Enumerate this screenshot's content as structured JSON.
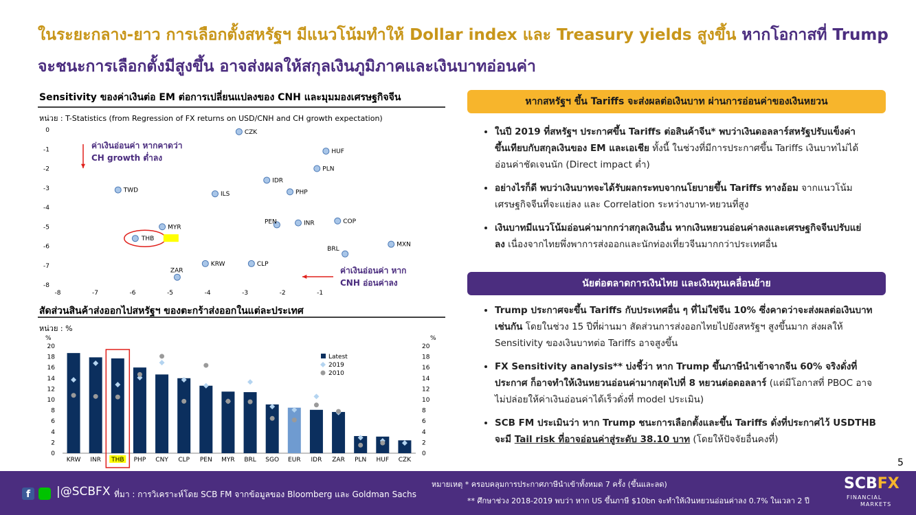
{
  "header": {
    "title_part1": "ในระยะกลาง-ยาว การเลือกตั้งสหรัฐฯ มีแนวโน้มทำให้ Dollar index และ Treasury yields สูงขึ้น",
    "title_part2": "หากโอกาสที่ Trump จะชนะการเลือกตั้งมีสูงขึ้น อาจส่งผลให้สกุลเงินภูมิภาคและเงินบาทอ่อนค่า"
  },
  "chart_data": [
    {
      "type": "scatter",
      "title": "Sensitivity ของค่าเงินต่อ EM ต่อการเปลี่ยนแปลงของ CNH และมุมมองเศรษฐกิจจีน",
      "subtitle": "หน่วย : T-Statistics (from Regression of FX returns on USD/CNH and CH growth expectation)",
      "labels": [
        "CZK",
        "HUF",
        "PLN",
        "IDR",
        "TWD",
        "ILS",
        "PHP",
        "MYR",
        "PEN",
        "INR",
        "COP",
        "THB",
        "BRL",
        "MXN",
        "KRW",
        "CLP",
        "ZAR"
      ],
      "x": [
        -3.16,
        -0.84,
        -1.08,
        -2.42,
        -6.39,
        -3.8,
        -1.8,
        -5.21,
        -2.15,
        -1.58,
        -0.53,
        -5.93,
        -0.33,
        0.9,
        -4.06,
        -2.83,
        -4.81
      ],
      "y": [
        -0.1,
        -1.1,
        -2.0,
        -2.6,
        -3.1,
        -3.3,
        -3.2,
        -5.0,
        -4.9,
        -4.8,
        -4.7,
        -5.6,
        -6.4,
        -5.9,
        -6.9,
        -6.9,
        -7.6
      ],
      "color": "#a9c6e8",
      "highlight_color": "#ffff00",
      "xlim": [
        -8,
        2.4
      ],
      "xticks": [
        -8,
        -7,
        -6,
        -5,
        -4,
        -3,
        -2,
        -1
      ],
      "ylim": [
        -8,
        0
      ],
      "yticks": [
        0,
        -1,
        -2,
        -3,
        -4,
        -5,
        -6,
        -7,
        -8
      ],
      "annotations": [
        {
          "lines": [
            "ค่าเงินอ่อนค่า หากคาดว่า",
            "CH growth ต่ำลง"
          ]
        },
        {
          "lines": [
            "ค่าเงินอ่อนค่า หาก",
            "CNH อ่อนค่าลง"
          ]
        }
      ]
    },
    {
      "type": "bar",
      "title": "สัดส่วนสินค้าส่งออกไปสหรัฐฯ ของตะกร้าส่งออกในแต่ละประเทศ",
      "subtitle": "หน่วย : %",
      "y_label": "%",
      "y2_label": "%",
      "categories": [
        "KRW",
        "INR",
        "THB",
        "PHP",
        "CNY",
        "CLP",
        "PEN",
        "MYR",
        "BRL",
        "SGO",
        "EUR",
        "IDR",
        "ZAR",
        "PLN",
        "HUF",
        "CZK"
      ],
      "series": [
        {
          "name": "Latest",
          "color": "#0b2f5e",
          "marker": "bar",
          "values": [
            18.7,
            17.9,
            17.7,
            16.0,
            14.7,
            14.0,
            12.6,
            11.5,
            11.4,
            9.1,
            8.5,
            8.1,
            7.7,
            3.2,
            3.1,
            2.4
          ]
        },
        {
          "name": "2019",
          "color": "#b4d4f0",
          "marker": "diamond",
          "values": [
            13.7,
            16.8,
            12.8,
            14.1,
            16.9,
            13.7,
            12.6,
            9.7,
            13.3,
            8.7,
            8.1,
            10.6,
            7.6,
            2.9,
            2.3,
            1.9
          ]
        },
        {
          "name": "2010",
          "color": "#9a9a9a",
          "marker": "circle",
          "values": [
            10.8,
            10.6,
            10.5,
            14.7,
            18.1,
            9.7,
            16.4,
            9.7,
            9.6,
            6.5,
            6.2,
            9.0,
            7.8,
            1.5,
            1.9,
            null
          ]
        }
      ],
      "bar_colors": [
        "#0b2f5e",
        "#0b2f5e",
        "#0b2f5e",
        "#0b2f5e",
        "#0b2f5e",
        "#0b2f5e",
        "#0b2f5e",
        "#0b2f5e",
        "#0b2f5e",
        "#0b2f5e",
        "#6f9bd0",
        "#0b2f5e",
        "#0b2f5e",
        "#0b2f5e",
        "#0b2f5e",
        "#0b2f5e"
      ],
      "ylim": [
        0,
        20
      ],
      "yticks": [
        0,
        2,
        4,
        6,
        8,
        10,
        12,
        14,
        16,
        18,
        20
      ],
      "y2lim": [
        0,
        20
      ],
      "y2ticks": [
        0,
        2,
        4,
        6,
        8,
        10,
        12,
        14,
        16,
        18,
        20
      ],
      "highlight_color": "#ffff00"
    }
  ],
  "panel1": {
    "heading": "หากสหรัฐฯ ขึ้น Tariffs จะส่งผลต่อเงินบาท ผ่านการอ่อนค่าของเงินหยวน",
    "bullets": [
      [
        {
          "style": "bold",
          "text": "ในปี 2019 ที่สหรัฐฯ ประกาศขึ้น Tariffs ต่อสินค้าจีน* พบว่าเงินดอลลาร์สหรัฐปรับแข็งค่าขึ้นเทียบกับสกุลเงินของ EM และเอเชีย"
        },
        {
          "style": "normal",
          "text": " ทั้งนี้ ในช่วงที่มีการประกาศขึ้น Tariffs เงินบาทไม่ได้อ่อนค่าชัดเจนนัก (Direct impact ต่ำ)"
        }
      ],
      [
        {
          "style": "bold",
          "text": "อย่างไรก็ดี พบว่าเงินบาทจะได้รับผลกระทบจากนโยบายขึ้น Tariffs ทางอ้อม"
        },
        {
          "style": "normal",
          "text": " จากแนวโน้มเศรษฐกิจจีนที่จะแย่ลง และ Correlation ระหว่างบาท-หยวนที่สูง"
        }
      ],
      [
        {
          "style": "bold",
          "text": "เงินบาทมีแนวโน้มอ่อนค่ามากกว่าสกุลเงินอื่น หากเงินหยวนอ่อนค่าลงและเศรษฐกิจจีนปรับแย่ลง"
        },
        {
          "style": "normal",
          "text": " เนื่องจากไทยพึ่งพาการส่งออกและนักท่องเที่ยวจีนมากกว่าประเทศอื่น"
        }
      ]
    ]
  },
  "panel2": {
    "heading": "นัยต่อตลาดการเงินไทย และเงินทุนเคลื่อนย้าย",
    "bullets": [
      [
        {
          "style": "bold",
          "text": "Trump ประกาศจะขึ้น Tariffs กับประเทศอื่น ๆ ที่ไม่ใช่จีน 10% ซึ่งคาดว่าจะส่งผลต่อเงินบาทเช่นกัน"
        },
        {
          "style": "normal",
          "text": " โดยในช่วง 15 ปีที่ผ่านมา สัดส่วนการส่งออกไทยไปยังสหรัฐฯ สูงขึ้นมาก ส่งผลให้ Sensitivity ของเงินบาทต่อ Tariffs อาจสูงขึ้น"
        }
      ],
      [
        {
          "style": "bold",
          "text": "FX Sensitivity analysis** บ่งชี้ว่า หาก Trump ขึ้นภาษีนำเข้าจากจีน 60% จริงดั่งที่ประกาศ ก็อาจทำให้เงินหยวนอ่อนค่ามากสุดไปที่ 8 หยวนต่อดอลลาร์"
        },
        {
          "style": "normal",
          "text": " (แต่มีโอกาสที่ PBOC อาจไม่ปล่อยให้ค่าเงินอ่อนค่าได้เร็วดั่งที่ model ประเมิน)"
        }
      ],
      [
        {
          "style": "bold",
          "text": "SCB FM ประเมินว่า หาก Trump ชนะการเลือกตั้งและขึ้น Tariffs ดั่งที่ประกาศไว้ USDTHB จะมี "
        },
        {
          "style": "underline",
          "text": "Tail risk ที่อาจอ่อนค่าสู่ระดับ 38.10 บาท"
        },
        {
          "style": "normal",
          "text": " (โดยให้ปัจจัยอื่นคงที่)"
        }
      ]
    ]
  },
  "page_number": "5",
  "footer": {
    "handle": "@SCBFX",
    "source": "ที่มา : การวิเคราะห์โดย SCB FM จากข้อมูลของ Bloomberg และ Goldman Sachs",
    "note1": "หมายเหตุ * ครอบคลุมการประกาศภาษีนำเข้าทั้งหมด 7 ครั้ง (ขึ้นและลด)",
    "note2": "** ศึกษาช่วง 2018-2019 พบว่า หาก US ขึ้นภาษี $10bn จะทำให้เงินหยวนอ่อนค่าลง 0.7% ในเวลา 2 ปี",
    "logo1": "SCB",
    "logo2": "FX",
    "logo3": "FINANCIAL",
    "logo4": "MARKETS"
  }
}
